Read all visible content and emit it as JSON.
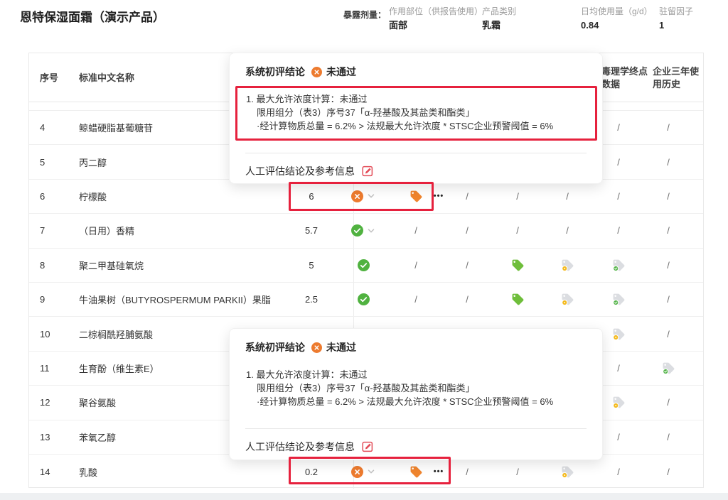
{
  "header": {
    "title": "恩特保湿面霜（演示产品）",
    "exposure_label": "暴露剂量：",
    "fields": [
      {
        "label": "作用部位（供报告使用）",
        "value": "面部"
      },
      {
        "label": "产品类别",
        "value": "乳霜"
      },
      {
        "label": "日均使用量（g/d）",
        "value": "0.84"
      },
      {
        "label": "驻留因子",
        "value": "1"
      }
    ]
  },
  "table": {
    "headers": {
      "no": "序号",
      "name": "标准中文名称",
      "tox": "毒理学终点数据",
      "history": "企业三年使用历史"
    },
    "slash": "/",
    "ellipsis": "•••",
    "rows": [
      {
        "no": "4",
        "name": "鲸蜡硬脂基葡糖苷",
        "value": "",
        "status": "",
        "chevron": false,
        "ellipsis": false,
        "cells": [
          "",
          "",
          "",
          "",
          "slash",
          "slash"
        ]
      },
      {
        "no": "5",
        "name": "丙二醇",
        "value": "",
        "status": "",
        "chevron": false,
        "ellipsis": false,
        "cells": [
          "",
          "",
          "",
          "",
          "slash",
          "slash"
        ]
      },
      {
        "no": "6",
        "name": "柠檬酸",
        "value": "6",
        "status": "fail",
        "chevron": true,
        "ellipsis": true,
        "cells": [
          "otag",
          "slash",
          "slash",
          "slash",
          "slash",
          "slash"
        ]
      },
      {
        "no": "7",
        "name": "（日用）香精",
        "value": "5.7",
        "status": "pass",
        "chevron": true,
        "ellipsis": false,
        "cells": [
          "slash",
          "slash",
          "slash",
          "slash",
          "slash",
          "slash"
        ]
      },
      {
        "no": "8",
        "name": "聚二甲基硅氧烷",
        "value": "5",
        "status": "pass",
        "chevron": false,
        "ellipsis": false,
        "cells": [
          "slash",
          "slash",
          "gtag",
          "ytag",
          "gctag",
          "slash"
        ]
      },
      {
        "no": "9",
        "name": "牛油果树（BUTYROSPERMUM PARKII）果脂",
        "value": "2.5",
        "status": "pass",
        "chevron": false,
        "ellipsis": false,
        "cells": [
          "slash",
          "slash",
          "gtag",
          "ytag",
          "gctag",
          "slash"
        ]
      },
      {
        "no": "10",
        "name": "二棕榈酰羟脯氨酸",
        "value": "",
        "status": "",
        "chevron": false,
        "ellipsis": false,
        "cells": [
          "",
          "",
          "",
          "",
          "ytag",
          "slash"
        ]
      },
      {
        "no": "11",
        "name": "生育酚（维生素E）",
        "value": "",
        "status": "",
        "chevron": false,
        "ellipsis": false,
        "cells": [
          "",
          "",
          "",
          "",
          "slash",
          "gctag"
        ]
      },
      {
        "no": "12",
        "name": "聚谷氨酸",
        "value": "",
        "status": "",
        "chevron": false,
        "ellipsis": false,
        "cells": [
          "",
          "",
          "",
          "",
          "ytag",
          "slash"
        ]
      },
      {
        "no": "13",
        "name": "苯氧乙醇",
        "value": "",
        "status": "",
        "chevron": false,
        "ellipsis": false,
        "cells": [
          "",
          "",
          "",
          "",
          "slash",
          "slash"
        ]
      },
      {
        "no": "14",
        "name": "乳酸",
        "value": "0.2",
        "status": "fail",
        "chevron": true,
        "ellipsis": true,
        "cells": [
          "otag",
          "slash",
          "slash",
          "ytag",
          "slash",
          "slash"
        ]
      }
    ]
  },
  "popover": {
    "title": "系统初评结论",
    "status": "未通过",
    "lines": [
      "1. 最大允许浓度计算：未通过",
      "限用组分（表3）序号37「α-羟基酸及其盐类和酯类」",
      "·经计算物质总量 = 6.2% > 法规最大允许浓度 * STSC企业预警阈值 = 6%"
    ],
    "manual_label": "人工评估结论及参考信息"
  },
  "colors": {
    "fail_orange": "#ED7B2F",
    "orange_tag": "#F0852E",
    "pass_green": "#50B240",
    "green_tag": "#6FBE3B",
    "gray_tag": "#DBDDE1",
    "yellow_badge": "#F4BA1E",
    "green_badge": "#55B44A",
    "annotation_red": "#E6213D",
    "edit_icon_pink": "#E34D59"
  }
}
